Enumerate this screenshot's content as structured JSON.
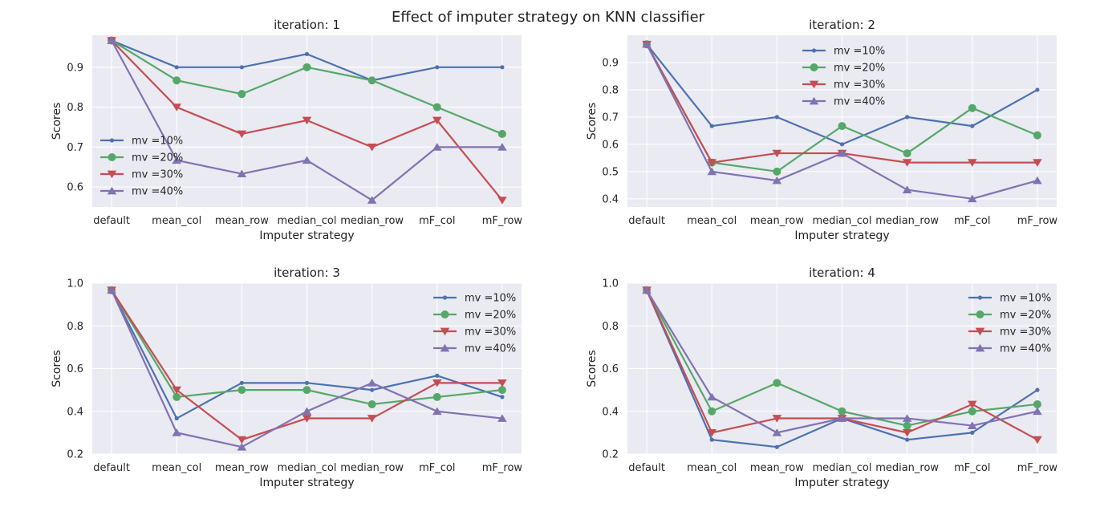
{
  "figure": {
    "title": "Effect of imputer strategy on KNN classifier"
  },
  "colors": {
    "mv10": "#4c72b0",
    "mv20": "#55a868",
    "mv30": "#c44e52",
    "mv40": "#8172b2",
    "axes_bg": "#eaeaf2",
    "grid": "#ffffff"
  },
  "chart_data": [
    {
      "type": "line",
      "title": "iteration: 1",
      "xlabel": "Imputer strategy",
      "ylabel": "Scores",
      "categories": [
        "default",
        "mean_col",
        "mean_row",
        "median_col",
        "median_row",
        "mF_col",
        "mF_row"
      ],
      "ylim": [
        0.55,
        0.98
      ],
      "yticks": [
        0.6,
        0.7,
        0.8,
        0.9
      ],
      "ytick_labels": [
        "0.6",
        "0.7",
        "0.8",
        "0.9"
      ],
      "legend": "lower-left",
      "grid": true,
      "series": [
        {
          "name": "mv =10%",
          "marker": "point",
          "values": [
            0.967,
            0.9,
            0.9,
            0.933,
            0.867,
            0.9,
            0.9
          ]
        },
        {
          "name": "mv =20%",
          "marker": "circle",
          "values": [
            0.967,
            0.867,
            0.833,
            0.9,
            0.867,
            0.8,
            0.733
          ]
        },
        {
          "name": "mv =30%",
          "marker": "triangle-down",
          "values": [
            0.967,
            0.8,
            0.733,
            0.767,
            0.7,
            0.767,
            0.567
          ]
        },
        {
          "name": "mv =40%",
          "marker": "triangle-up",
          "values": [
            0.967,
            0.667,
            0.633,
            0.667,
            0.567,
            0.7,
            0.7
          ]
        }
      ]
    },
    {
      "type": "line",
      "title": "iteration: 2",
      "xlabel": "Imputer strategy",
      "ylabel": "Scores",
      "categories": [
        "default",
        "mean_col",
        "mean_row",
        "median_col",
        "median_row",
        "mF_col",
        "mF_row"
      ],
      "ylim": [
        0.37,
        1.0
      ],
      "yticks": [
        0.4,
        0.5,
        0.6,
        0.7,
        0.8,
        0.9
      ],
      "ytick_labels": [
        "0.4",
        "0.5",
        "0.6",
        "0.7",
        "0.8",
        "0.9"
      ],
      "legend": "upper-center",
      "grid": true,
      "series": [
        {
          "name": "mv =10%",
          "marker": "point",
          "values": [
            0.967,
            0.667,
            0.7,
            0.6,
            0.7,
            0.667,
            0.8
          ]
        },
        {
          "name": "mv =20%",
          "marker": "circle",
          "values": [
            0.967,
            0.533,
            0.5,
            0.667,
            0.567,
            0.733,
            0.633
          ]
        },
        {
          "name": "mv =30%",
          "marker": "triangle-down",
          "values": [
            0.967,
            0.533,
            0.567,
            0.567,
            0.533,
            0.533,
            0.533
          ]
        },
        {
          "name": "mv =40%",
          "marker": "triangle-up",
          "values": [
            0.967,
            0.5,
            0.467,
            0.567,
            0.433,
            0.4,
            0.467
          ]
        }
      ]
    },
    {
      "type": "line",
      "title": "iteration: 3",
      "xlabel": "Imputer strategy",
      "ylabel": "Scores",
      "categories": [
        "default",
        "mean_col",
        "mean_row",
        "median_col",
        "median_row",
        "mF_col",
        "mF_row"
      ],
      "ylim": [
        0.2,
        1.0
      ],
      "yticks": [
        0.2,
        0.4,
        0.6,
        0.8,
        1.0
      ],
      "ytick_labels": [
        "0.2",
        "0.4",
        "0.6",
        "0.8",
        "1.0"
      ],
      "legend": "upper-right",
      "grid": true,
      "series": [
        {
          "name": "mv =10%",
          "marker": "point",
          "values": [
            0.967,
            0.367,
            0.533,
            0.533,
            0.5,
            0.567,
            0.467
          ]
        },
        {
          "name": "mv =20%",
          "marker": "circle",
          "values": [
            0.967,
            0.467,
            0.5,
            0.5,
            0.433,
            0.467,
            0.5
          ]
        },
        {
          "name": "mv =30%",
          "marker": "triangle-down",
          "values": [
            0.967,
            0.5,
            0.267,
            0.367,
            0.367,
            0.533,
            0.533
          ]
        },
        {
          "name": "mv =40%",
          "marker": "triangle-up",
          "values": [
            0.967,
            0.3,
            0.233,
            0.4,
            0.533,
            0.4,
            0.367
          ]
        }
      ]
    },
    {
      "type": "line",
      "title": "iteration: 4",
      "xlabel": "Imputer strategy",
      "ylabel": "Scores",
      "categories": [
        "default",
        "mean_col",
        "mean_row",
        "median_col",
        "median_row",
        "mF_col",
        "mF_row"
      ],
      "ylim": [
        0.2,
        1.0
      ],
      "yticks": [
        0.2,
        0.4,
        0.6,
        0.8,
        1.0
      ],
      "ytick_labels": [
        "0.2",
        "0.4",
        "0.6",
        "0.8",
        "1.0"
      ],
      "legend": "upper-right",
      "grid": true,
      "series": [
        {
          "name": "mv =10%",
          "marker": "point",
          "values": [
            0.967,
            0.267,
            0.233,
            0.367,
            0.267,
            0.3,
            0.5
          ]
        },
        {
          "name": "mv =20%",
          "marker": "circle",
          "values": [
            0.967,
            0.4,
            0.533,
            0.4,
            0.333,
            0.4,
            0.433
          ]
        },
        {
          "name": "mv =30%",
          "marker": "triangle-down",
          "values": [
            0.967,
            0.3,
            0.367,
            0.367,
            0.3,
            0.433,
            0.267
          ]
        },
        {
          "name": "mv =40%",
          "marker": "triangle-up",
          "values": [
            0.967,
            0.467,
            0.3,
            0.367,
            0.367,
            0.333,
            0.4
          ]
        }
      ]
    }
  ]
}
